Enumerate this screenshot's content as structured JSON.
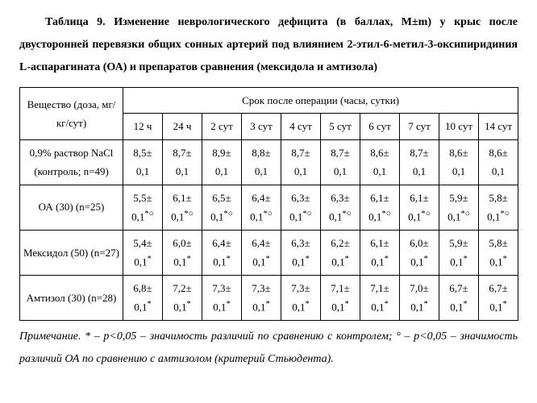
{
  "caption": "Таблица 9. Изменение неврологического дефицита (в баллах, M±m) у крыс после двусторонней перевязки общих сонных артерий под влиянием 2-этил-6-метил-3-оксипиридиния L-аспарагината (ОА) и препаратов сравнения (мексидола и амтизола)",
  "col_headers": {
    "substance": "Вещество (доза, мг/кг/сут)",
    "period": "Срок после операции (часы, сутки)",
    "times": [
      "12 ч",
      "24 ч",
      "2 сут",
      "3 сут",
      "4 сут",
      "5 сут",
      "6 сут",
      "7 сут",
      "10 сут",
      "14 сут"
    ]
  },
  "rows": [
    {
      "label": "0,9% раствор NaCl (контроль; n=49)",
      "cells": [
        {
          "v": "8,5± 0,1",
          "m": ""
        },
        {
          "v": "8,7± 0,1",
          "m": ""
        },
        {
          "v": "8,9± 0,1",
          "m": ""
        },
        {
          "v": "8,8± 0,1",
          "m": ""
        },
        {
          "v": "8,7± 0,1",
          "m": ""
        },
        {
          "v": "8,7± 0,1",
          "m": ""
        },
        {
          "v": "8,6± 0,1",
          "m": ""
        },
        {
          "v": "8,7± 0,1",
          "m": ""
        },
        {
          "v": "8,6± 0,1",
          "m": ""
        },
        {
          "v": "8,6± 0,1",
          "m": ""
        }
      ]
    },
    {
      "label": "ОА (30) (n=25)",
      "cells": [
        {
          "v": "5,5± 0,1",
          "m": "*○"
        },
        {
          "v": "6,1± 0,1",
          "m": "*○"
        },
        {
          "v": "6,5± 0,1",
          "m": "*○"
        },
        {
          "v": "6,4± 0,1",
          "m": "*○"
        },
        {
          "v": "6,3± 0,1",
          "m": "*○"
        },
        {
          "v": "6,3± 0,1",
          "m": "*○"
        },
        {
          "v": "6,1± 0,1",
          "m": "*○"
        },
        {
          "v": "6,1± 0,1",
          "m": "*○"
        },
        {
          "v": "5,9± 0,1",
          "m": "*○"
        },
        {
          "v": "5,8± 0,1",
          "m": "*○"
        }
      ]
    },
    {
      "label": "Мексидол (50) (n=27)",
      "cells": [
        {
          "v": "5,4± 0,1",
          "m": "*"
        },
        {
          "v": "6,0± 0,1",
          "m": "*"
        },
        {
          "v": "6,4± 0,1",
          "m": "*"
        },
        {
          "v": "6,4± 0,1",
          "m": "*"
        },
        {
          "v": "6,3± 0,1",
          "m": "*"
        },
        {
          "v": "6,2± 0,1",
          "m": "*"
        },
        {
          "v": "6,1± 0,1",
          "m": "*"
        },
        {
          "v": "6,0± 0,1",
          "m": "*"
        },
        {
          "v": "5,9± 0,1",
          "m": "*"
        },
        {
          "v": "5,8± 0,1",
          "m": "*"
        }
      ]
    },
    {
      "label": "Амтизол (30) (n=28)",
      "cells": [
        {
          "v": "6,8± 0,1",
          "m": "*"
        },
        {
          "v": "7,2± 0,1",
          "m": "*"
        },
        {
          "v": "7,3± 0,1",
          "m": "*"
        },
        {
          "v": "7,3± 0,1",
          "m": "*"
        },
        {
          "v": "7,3± 0,1",
          "m": "*"
        },
        {
          "v": "7,1± 0,1",
          "m": "*"
        },
        {
          "v": "7,1± 0,1",
          "m": "*"
        },
        {
          "v": "7,0± 0,1",
          "m": "*"
        },
        {
          "v": "6,7± 0,1",
          "m": "*"
        },
        {
          "v": "6,7± 0,1",
          "m": "*"
        }
      ]
    }
  ],
  "note_label": "Примечание.",
  "note_text": " * – p<0,05 – значимость различий по сравнению с контролем; ° – p<0,05 – значимость различий ОА по сравнению с амтизолом (критерий Стьюдента)."
}
